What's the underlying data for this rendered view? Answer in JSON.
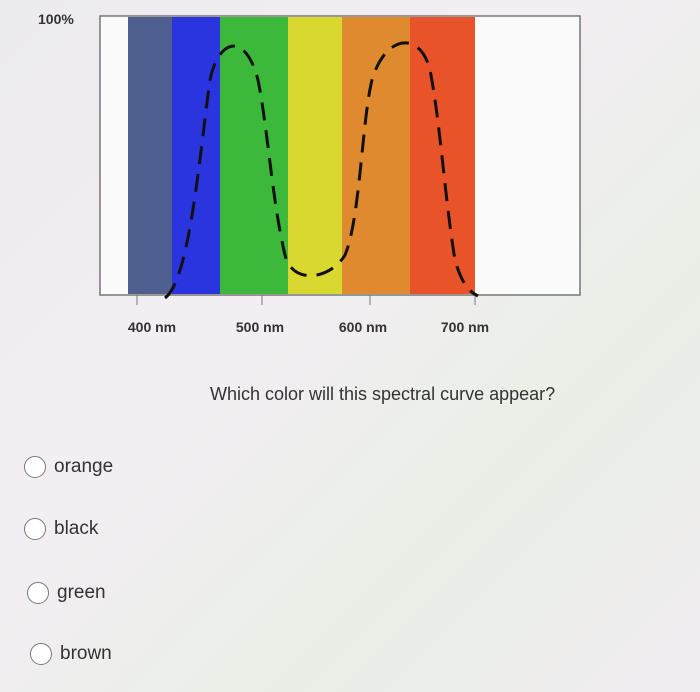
{
  "figure": {
    "y_label": "100%",
    "x_labels": [
      "400 nm",
      "500 nm",
      "600 nm",
      "700 nm"
    ]
  },
  "question": "Which color will this spectral curve appear?",
  "options": [
    "orange",
    "black",
    "green",
    "brown"
  ]
}
